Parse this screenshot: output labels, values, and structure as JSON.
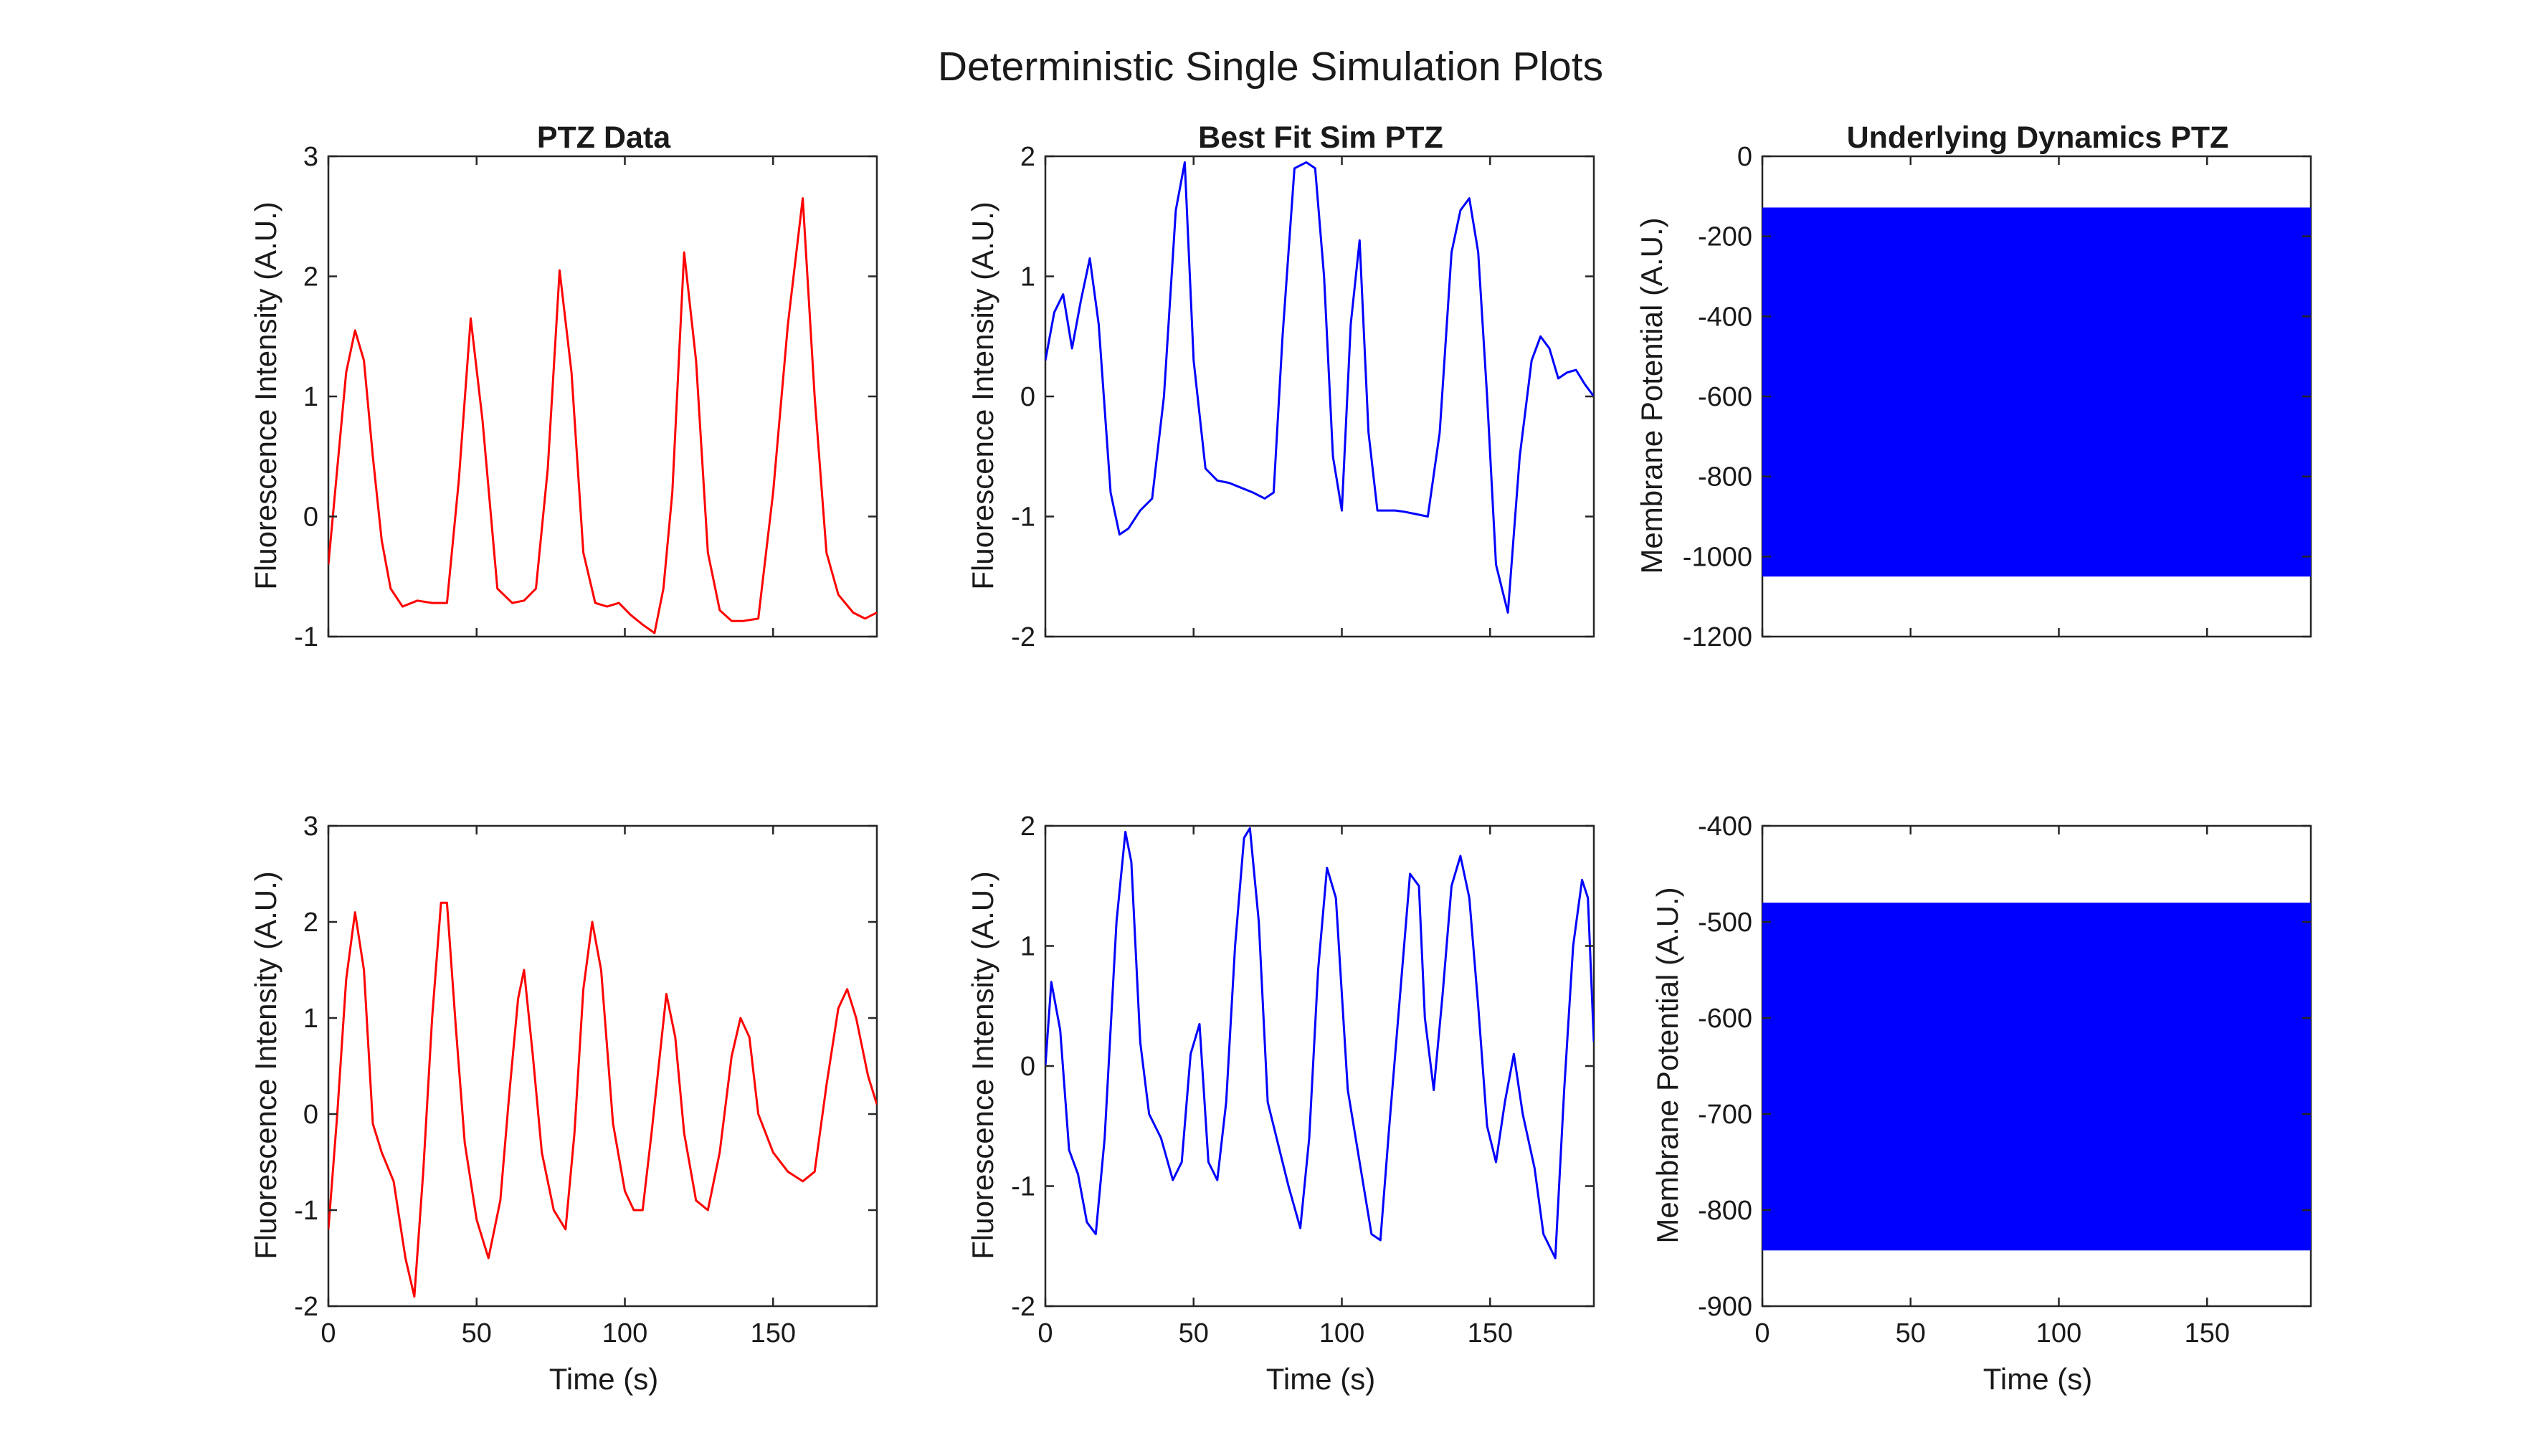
{
  "figure": {
    "title": "Deterministic Single Simulation Plots"
  },
  "chart_data": [
    {
      "id": "p11",
      "type": "line",
      "title": "PTZ Data",
      "xlabel": "",
      "ylabel": "Fluorescence Intensity (A.U.)",
      "xlim": [
        0,
        185
      ],
      "ylim": [
        -1,
        3
      ],
      "yticks": [
        -1,
        0,
        1,
        2,
        3
      ],
      "xticks": [],
      "grid": false,
      "color": "#ff0000",
      "series": [
        {
          "x": [
            0,
            3,
            6,
            9,
            12,
            15,
            18,
            21,
            25,
            30,
            35,
            40,
            44,
            48,
            52,
            57,
            62,
            66,
            70,
            74,
            78,
            82,
            86,
            90,
            94,
            98,
            102,
            106,
            110,
            113,
            116,
            120,
            124,
            128,
            132,
            136,
            140,
            145,
            150,
            155,
            160,
            164,
            168,
            172,
            177,
            181,
            185
          ],
          "y": [
            -0.4,
            0.4,
            1.2,
            1.55,
            1.3,
            0.5,
            -0.2,
            -0.6,
            -0.75,
            -0.7,
            -0.72,
            -0.72,
            0.3,
            1.65,
            0.8,
            -0.6,
            -0.72,
            -0.7,
            -0.6,
            0.4,
            2.05,
            1.2,
            -0.3,
            -0.72,
            -0.75,
            -0.72,
            -0.82,
            -0.9,
            -0.97,
            -0.6,
            0.2,
            2.2,
            1.3,
            -0.3,
            -0.78,
            -0.87,
            -0.87,
            -0.85,
            0.2,
            1.6,
            2.65,
            1.0,
            -0.3,
            -0.65,
            -0.8,
            -0.85,
            -0.8
          ]
        }
      ]
    },
    {
      "id": "p12",
      "type": "line",
      "title": "Best Fit Sim PTZ",
      "xlabel": "",
      "ylabel": "Fluorescence Intensity (A.U.)",
      "xlim": [
        0,
        185
      ],
      "ylim": [
        -2,
        2
      ],
      "yticks": [
        -2,
        -1,
        0,
        1,
        2
      ],
      "xticks": [],
      "grid": false,
      "color": "#0000ff",
      "series": [
        {
          "x": [
            0,
            3,
            6,
            9,
            12,
            15,
            18,
            22,
            25,
            28,
            32,
            36,
            40,
            44,
            47,
            50,
            54,
            58,
            62,
            66,
            70,
            74,
            77,
            80,
            84,
            88,
            91,
            94,
            97,
            100,
            103,
            106,
            109,
            112,
            115,
            118,
            121,
            125,
            129,
            133,
            137,
            140,
            143,
            146,
            149,
            152,
            156,
            160,
            164,
            167,
            170,
            173,
            176,
            179,
            182,
            185
          ],
          "y": [
            0.3,
            0.7,
            0.85,
            0.4,
            0.8,
            1.15,
            0.6,
            -0.8,
            -1.15,
            -1.1,
            -0.95,
            -0.85,
            0.0,
            1.55,
            1.95,
            0.3,
            -0.6,
            -0.7,
            -0.72,
            -0.76,
            -0.8,
            -0.85,
            -0.8,
            0.5,
            1.9,
            1.95,
            1.9,
            1.0,
            -0.5,
            -0.95,
            0.6,
            1.3,
            -0.3,
            -0.95,
            -0.95,
            -0.95,
            -0.96,
            -0.98,
            -1.0,
            -0.3,
            1.2,
            1.55,
            1.65,
            1.2,
            0.0,
            -1.4,
            -1.8,
            -0.5,
            0.3,
            0.5,
            0.4,
            0.15,
            0.2,
            0.22,
            0.1,
            0.0
          ]
        }
      ]
    },
    {
      "id": "p13",
      "type": "line",
      "title": "Underlying Dynamics PTZ",
      "xlabel": "",
      "ylabel": "Membrane Potential (A.U.)",
      "xlim": [
        0,
        185
      ],
      "ylim": [
        -1200,
        0
      ],
      "yticks": [
        -1200,
        -1000,
        -800,
        -600,
        -400,
        -200,
        0
      ],
      "xticks": [],
      "grid": false,
      "color": "#0000ff",
      "band": [
        -1050,
        -128
      ]
    },
    {
      "id": "p21",
      "type": "line",
      "title": "",
      "xlabel": "Time (s)",
      "ylabel": "Fluorescence Intensity (A.U.)",
      "xlim": [
        0,
        185
      ],
      "ylim": [
        -2,
        3
      ],
      "yticks": [
        -2,
        -1,
        0,
        1,
        2,
        3
      ],
      "xticks": [
        0,
        50,
        100,
        150
      ],
      "grid": false,
      "color": "#ff0000",
      "series": [
        {
          "x": [
            0,
            3,
            6,
            9,
            12,
            15,
            18,
            22,
            26,
            29,
            32,
            35,
            38,
            40,
            43,
            46,
            50,
            54,
            58,
            61,
            64,
            66,
            69,
            72,
            76,
            80,
            83,
            86,
            89,
            92,
            96,
            100,
            103,
            106,
            109,
            114,
            117,
            120,
            124,
            128,
            132,
            136,
            139,
            142,
            145,
            150,
            155,
            160,
            164,
            168,
            172,
            175,
            178,
            182,
            185
          ],
          "y": [
            -1.2,
            0.0,
            1.4,
            2.1,
            1.5,
            -0.1,
            -0.4,
            -0.7,
            -1.5,
            -1.9,
            -0.6,
            1.0,
            2.2,
            2.2,
            0.9,
            -0.3,
            -1.1,
            -1.5,
            -0.9,
            0.2,
            1.2,
            1.5,
            0.6,
            -0.4,
            -1.0,
            -1.2,
            -0.2,
            1.3,
            2.0,
            1.5,
            -0.1,
            -0.8,
            -1.0,
            -1.0,
            -0.2,
            1.25,
            0.8,
            -0.2,
            -0.9,
            -1.0,
            -0.4,
            0.6,
            1.0,
            0.8,
            0.0,
            -0.4,
            -0.6,
            -0.7,
            -0.6,
            0.3,
            1.1,
            1.3,
            1.0,
            0.4,
            0.1
          ]
        }
      ]
    },
    {
      "id": "p22",
      "type": "line",
      "title": "",
      "xlabel": "Time (s)",
      "ylabel": "Fluorescence Intensity (A.U.)",
      "xlim": [
        0,
        185
      ],
      "ylim": [
        -2,
        2
      ],
      "yticks": [
        -2,
        -1,
        0,
        1,
        2
      ],
      "xticks": [
        0,
        50,
        100,
        150
      ],
      "grid": false,
      "color": "#0000ff",
      "series": [
        {
          "x": [
            0,
            2,
            5,
            8,
            11,
            14,
            17,
            20,
            24,
            27,
            29,
            32,
            35,
            39,
            43,
            46,
            49,
            52,
            55,
            58,
            61,
            64,
            67,
            69,
            72,
            75,
            78,
            82,
            86,
            89,
            92,
            95,
            98,
            102,
            106,
            110,
            113,
            116,
            120,
            123,
            126,
            128,
            131,
            134,
            137,
            140,
            143,
            146,
            149,
            152,
            155,
            158,
            161,
            165,
            168,
            172,
            175,
            178,
            181,
            183,
            185
          ],
          "y": [
            0.0,
            0.7,
            0.3,
            -0.7,
            -0.9,
            -1.3,
            -1.4,
            -0.6,
            1.2,
            1.95,
            1.7,
            0.2,
            -0.4,
            -0.6,
            -0.95,
            -0.8,
            0.1,
            0.35,
            -0.8,
            -0.95,
            -0.3,
            1.0,
            1.9,
            1.98,
            1.2,
            -0.3,
            -0.6,
            -1.0,
            -1.35,
            -0.6,
            0.8,
            1.65,
            1.4,
            -0.2,
            -0.8,
            -1.4,
            -1.45,
            -0.5,
            0.7,
            1.6,
            1.5,
            0.4,
            -0.2,
            0.6,
            1.5,
            1.75,
            1.4,
            0.5,
            -0.5,
            -0.8,
            -0.3,
            0.1,
            -0.4,
            -0.85,
            -1.4,
            -1.6,
            -0.2,
            1.0,
            1.55,
            1.4,
            0.2
          ]
        }
      ]
    },
    {
      "id": "p23",
      "type": "line",
      "title": "",
      "xlabel": "Time (s)",
      "ylabel": "Membrane Potential (A.U.)",
      "xlim": [
        0,
        185
      ],
      "ylim": [
        -900,
        -400
      ],
      "yticks": [
        -900,
        -800,
        -700,
        -600,
        -500,
        -400
      ],
      "xticks": [
        0,
        50,
        100,
        150
      ],
      "grid": false,
      "color": "#0000ff",
      "band": [
        -842,
        -480
      ]
    }
  ]
}
